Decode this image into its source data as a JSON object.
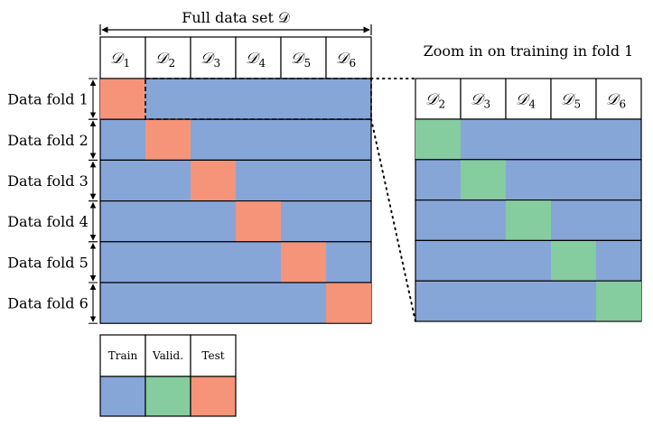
{
  "title": "Full data set 𝒟",
  "zoom_title": "Zoom in on training in fold 1",
  "headers": [
    {
      "sym": "𝒟",
      "sub": "1"
    },
    {
      "sym": "𝒟",
      "sub": "2"
    },
    {
      "sym": "𝒟",
      "sub": "3"
    },
    {
      "sym": "𝒟",
      "sub": "4"
    },
    {
      "sym": "𝒟",
      "sub": "5"
    },
    {
      "sym": "𝒟",
      "sub": "6"
    }
  ],
  "zoom_headers": [
    {
      "sym": "𝒟",
      "sub": "2"
    },
    {
      "sym": "𝒟",
      "sub": "3"
    },
    {
      "sym": "𝒟",
      "sub": "4"
    },
    {
      "sym": "𝒟",
      "sub": "5"
    },
    {
      "sym": "𝒟",
      "sub": "6"
    }
  ],
  "folds": [
    {
      "label": "Data fold 1",
      "test_index": 0
    },
    {
      "label": "Data fold 2",
      "test_index": 1
    },
    {
      "label": "Data fold 3",
      "test_index": 2
    },
    {
      "label": "Data fold 4",
      "test_index": 3
    },
    {
      "label": "Data fold 5",
      "test_index": 4
    },
    {
      "label": "Data fold 6",
      "test_index": 5
    }
  ],
  "zoom_rows": [
    {
      "valid_index": 0
    },
    {
      "valid_index": 1
    },
    {
      "valid_index": 2
    },
    {
      "valid_index": 3
    },
    {
      "valid_index": 4
    }
  ],
  "legend": [
    {
      "label": "Train",
      "role": "train"
    },
    {
      "label": "Valid.",
      "role": "valid"
    },
    {
      "label": "Test",
      "role": "test"
    }
  ],
  "colors": {
    "train": "#86a6d8",
    "valid": "#85cc9e",
    "test": "#f59479"
  }
}
